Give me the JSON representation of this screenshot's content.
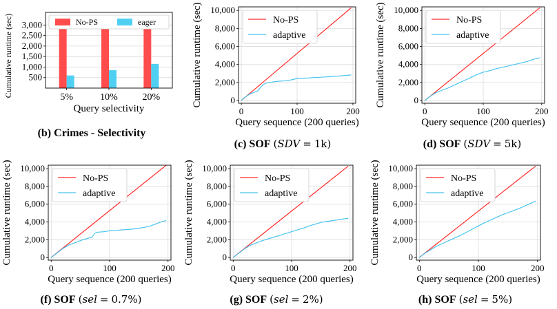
{
  "colors": {
    "nops": "#ff4c4c",
    "eager": "#4fd0f2",
    "adaptive": "#48c4ee",
    "nops_line": "#ff2a2a"
  },
  "chart_data": [
    {
      "id": "b",
      "type": "bar",
      "caption": {
        "label": "(b) Crimes - Selectivity"
      },
      "categories": [
        "5%",
        "10%",
        "20%"
      ],
      "series": [
        {
          "name": "No-PS",
          "values": [
            2850,
            2850,
            2850
          ]
        },
        {
          "name": "eager",
          "values": [
            600,
            850,
            1150
          ]
        }
      ],
      "xlabel": "Query selectivity",
      "ylabel": "Cumulative runtime (sec)",
      "ylim": [
        0,
        3600
      ],
      "yticks": [
        "500",
        "1,000",
        "1,500",
        "2,000",
        "2,500",
        "3,000"
      ],
      "legend": "top",
      "grid": true
    },
    {
      "id": "c",
      "type": "line",
      "caption": {
        "label": "(c) SOF",
        "param": "SDV",
        "eq": "=",
        "value": "1k"
      },
      "xlabel": "Query sequence (200 queries)",
      "ylabel": "Cumulative runtime (sec)",
      "xlim": [
        -5,
        205
      ],
      "ylim": [
        -300,
        10400
      ],
      "xticks": [
        "0",
        "100",
        "200"
      ],
      "yticks": [
        "0",
        "2,000",
        "4,000",
        "6,000",
        "8,000",
        "10,000"
      ],
      "legend": "top-left",
      "grid": true,
      "series": [
        {
          "name": "No-PS",
          "x": [
            0,
            197
          ],
          "y": [
            0,
            10300
          ]
        },
        {
          "name": "adaptive",
          "x": [
            0,
            5,
            10,
            15,
            20,
            25,
            30,
            35,
            40,
            45,
            50,
            55,
            60,
            70,
            80,
            90,
            100,
            110,
            120,
            130,
            140,
            150,
            160,
            170,
            180,
            190,
            197
          ],
          "y": [
            0,
            300,
            500,
            700,
            850,
            950,
            1100,
            1500,
            1800,
            1950,
            2000,
            2050,
            2100,
            2150,
            2200,
            2300,
            2450,
            2480,
            2500,
            2550,
            2580,
            2620,
            2650,
            2700,
            2750,
            2800,
            2850
          ]
        }
      ]
    },
    {
      "id": "d",
      "type": "line",
      "caption": {
        "label": "(d) SOF",
        "param": "SDV",
        "eq": "=",
        "value": "5k"
      },
      "xlabel": "Query sequence (200 queries)",
      "ylabel": "Cumulative runtime (sec)",
      "xlim": [
        -5,
        205
      ],
      "ylim": [
        -300,
        10400
      ],
      "xticks": [
        "0",
        "100",
        "200"
      ],
      "yticks": [
        "0",
        "2,000",
        "4,000",
        "6,000",
        "8,000",
        "10,000"
      ],
      "legend": "top-left",
      "grid": true,
      "series": [
        {
          "name": "No-PS",
          "x": [
            0,
            197
          ],
          "y": [
            0,
            10300
          ]
        },
        {
          "name": "adaptive",
          "x": [
            0,
            10,
            20,
            30,
            40,
            50,
            60,
            70,
            80,
            90,
            100,
            110,
            120,
            130,
            140,
            150,
            160,
            170,
            180,
            190,
            197
          ],
          "y": [
            0,
            500,
            900,
            1150,
            1400,
            1700,
            2000,
            2300,
            2600,
            2900,
            3150,
            3300,
            3500,
            3650,
            3800,
            3950,
            4100,
            4250,
            4450,
            4650,
            4750
          ]
        }
      ]
    },
    {
      "id": "f",
      "type": "line",
      "caption": {
        "label": "(f) SOF",
        "param": "sel",
        "eq": "=",
        "value": "0.7%"
      },
      "xlabel": "Query sequence (200 queries)",
      "ylabel": "Cumulative runtime (sec)",
      "xlim": [
        -5,
        205
      ],
      "ylim": [
        -300,
        10400
      ],
      "xticks": [
        "0",
        "100",
        "200"
      ],
      "yticks": [
        "0",
        "2,000",
        "4,000",
        "6,000",
        "8,000",
        "10,000"
      ],
      "legend": "top-left",
      "grid": true,
      "series": [
        {
          "name": "No-PS",
          "x": [
            0,
            197
          ],
          "y": [
            0,
            10400
          ]
        },
        {
          "name": "adaptive",
          "x": [
            0,
            10,
            20,
            30,
            40,
            50,
            60,
            70,
            75,
            80,
            90,
            100,
            110,
            120,
            130,
            140,
            150,
            160,
            170,
            180,
            190,
            197
          ],
          "y": [
            0,
            500,
            1000,
            1400,
            1650,
            1900,
            2100,
            2300,
            2750,
            2850,
            2900,
            3000,
            3050,
            3100,
            3150,
            3200,
            3300,
            3400,
            3550,
            3800,
            4050,
            4150
          ]
        }
      ]
    },
    {
      "id": "g",
      "type": "line",
      "caption": {
        "label": "(g) SOF",
        "param": "sel",
        "eq": "=",
        "value": "2%"
      },
      "xlabel": "Query sequence (200 queries)",
      "ylabel": "Cumulative runtime (sec)",
      "xlim": [
        -5,
        205
      ],
      "ylim": [
        -300,
        10400
      ],
      "xticks": [
        "0",
        "100",
        "200"
      ],
      "yticks": [
        "0",
        "2,000",
        "4,000",
        "6,000",
        "8,000",
        "10,000"
      ],
      "legend": "top-left",
      "grid": true,
      "series": [
        {
          "name": "No-PS",
          "x": [
            0,
            197
          ],
          "y": [
            0,
            10300
          ]
        },
        {
          "name": "adaptive",
          "x": [
            0,
            10,
            20,
            30,
            40,
            50,
            60,
            70,
            80,
            90,
            100,
            110,
            120,
            130,
            140,
            150,
            160,
            170,
            180,
            190,
            197
          ],
          "y": [
            0,
            500,
            1000,
            1400,
            1650,
            1900,
            2100,
            2300,
            2500,
            2700,
            2900,
            3100,
            3300,
            3550,
            3750,
            3950,
            4050,
            4150,
            4250,
            4350,
            4400
          ]
        }
      ]
    },
    {
      "id": "h",
      "type": "line",
      "caption": {
        "label": "(h) SOF",
        "param": "sel",
        "eq": "=",
        "value": "5%"
      },
      "xlabel": "Query sequence (200 queries)",
      "ylabel": "Cumulative runtime (sec)",
      "xlim": [
        -5,
        205
      ],
      "ylim": [
        -300,
        10400
      ],
      "xticks": [
        "0",
        "100",
        "200"
      ],
      "yticks": [
        "0",
        "2,000",
        "4,000",
        "6,000",
        "8,000",
        "10,000"
      ],
      "legend": "top-left",
      "grid": true,
      "series": [
        {
          "name": "No-PS",
          "x": [
            0,
            197
          ],
          "y": [
            0,
            10300
          ]
        },
        {
          "name": "adaptive",
          "x": [
            0,
            10,
            20,
            30,
            40,
            50,
            60,
            70,
            80,
            90,
            100,
            110,
            120,
            130,
            140,
            150,
            160,
            170,
            180,
            190,
            197
          ],
          "y": [
            0,
            500,
            900,
            1300,
            1600,
            1900,
            2200,
            2500,
            2850,
            3200,
            3550,
            3900,
            4200,
            4500,
            4800,
            5050,
            5300,
            5550,
            5850,
            6150,
            6350
          ]
        }
      ]
    }
  ]
}
